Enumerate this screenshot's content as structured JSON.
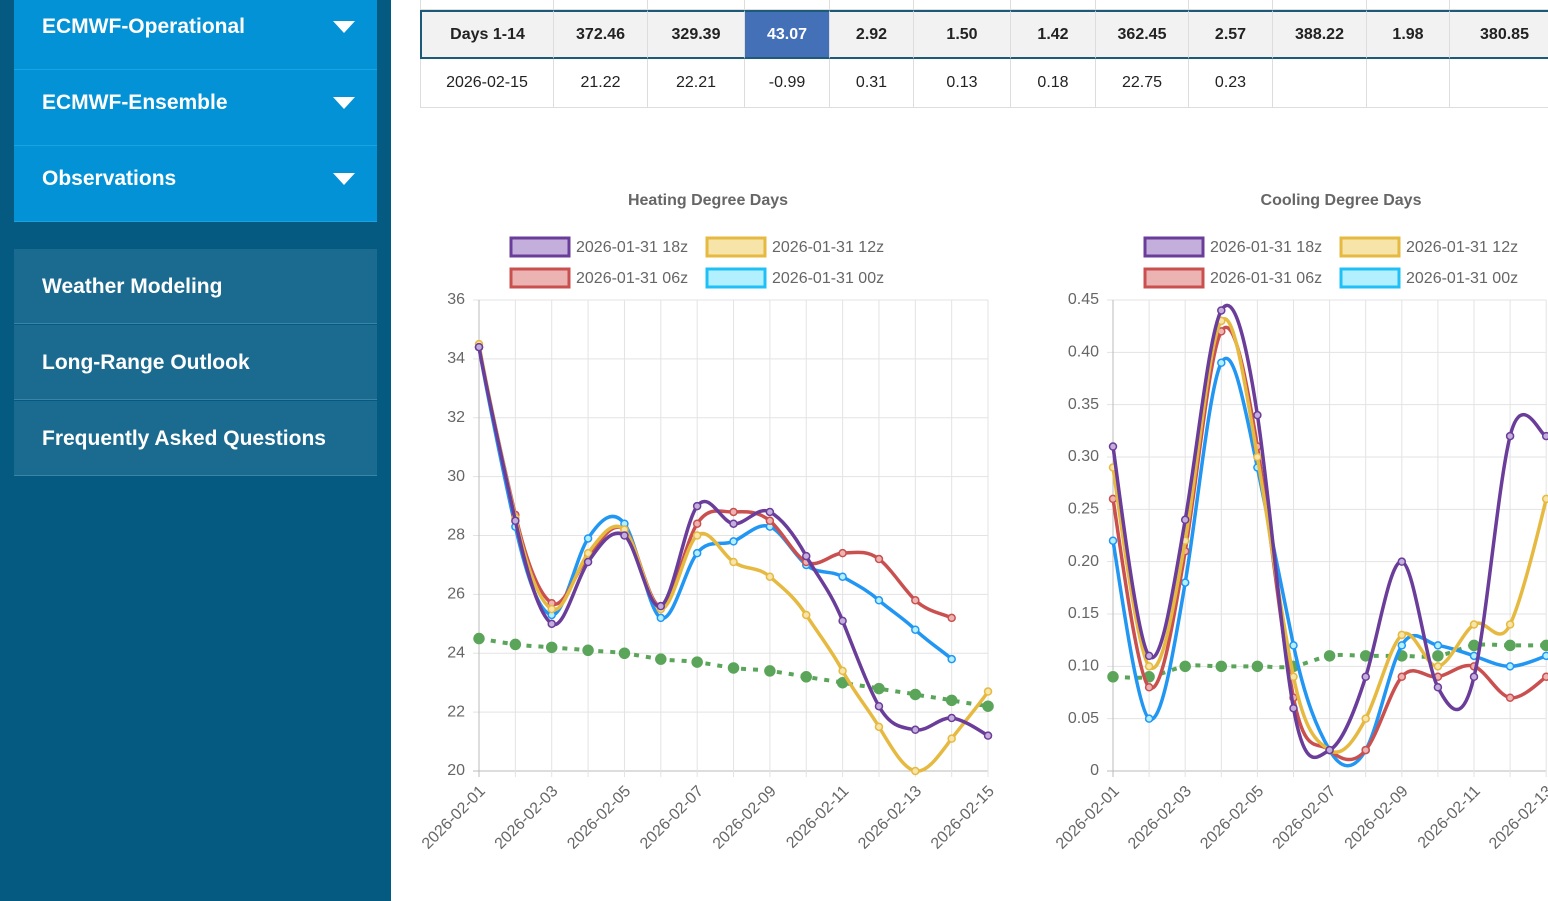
{
  "sidebar": {
    "dropdowns": [
      "ECMWF-Operational",
      "ECMWF-Ensemble",
      "Observations"
    ],
    "links": [
      "Weather Modeling",
      "Long-Range Outlook",
      "Frequently Asked Questions"
    ]
  },
  "table": {
    "rows": [
      [
        "Days 1-14",
        "372.46",
        "329.39",
        "43.07",
        "2.92",
        "1.50",
        "1.42",
        "362.45",
        "2.57",
        "388.22",
        "1.98",
        "380.85"
      ],
      [
        "2026-02-15",
        "21.22",
        "22.21",
        "-0.99",
        "0.31",
        "0.13",
        "0.18",
        "22.75",
        "0.23"
      ]
    ]
  },
  "chart_data": [
    {
      "type": "line",
      "title": "Heating Degree Days",
      "categories": [
        "2026-02-01",
        null,
        "2026-02-03",
        null,
        "2026-02-05",
        null,
        "2026-02-07",
        null,
        "2026-02-09",
        null,
        "2026-02-11",
        null,
        "2026-02-13",
        null,
        "2026-02-15"
      ],
      "series": [
        {
          "name": "2026-01-31 18z",
          "color": "#6a3d9a",
          "fill": "#c4aedb",
          "values": [
            34.4,
            28.5,
            25.0,
            27.1,
            28.0,
            25.6,
            29.0,
            28.4,
            28.8,
            27.3,
            25.1,
            22.2,
            21.4,
            21.8,
            21.2
          ]
        },
        {
          "name": "2026-01-31 12z",
          "color": "#e6b941",
          "fill": "#f6e4a9",
          "values": [
            34.5,
            28.6,
            25.5,
            27.4,
            28.2,
            25.5,
            28.0,
            27.1,
            26.6,
            25.3,
            23.4,
            21.5,
            20.0,
            21.1,
            22.7
          ]
        },
        {
          "name": "2026-01-31 06z",
          "color": "#c9504f",
          "fill": "#ebb4b3",
          "values": [
            34.4,
            28.7,
            25.7,
            27.3,
            28.2,
            25.6,
            28.4,
            28.8,
            28.5,
            27.1,
            27.4,
            27.2,
            25.8,
            25.2,
            null
          ]
        },
        {
          "name": "2026-01-31 00z",
          "color": "#2196f3",
          "fill": "#b3f0ff",
          "legend_color": "#1fc0f5",
          "values": [
            34.4,
            28.3,
            25.3,
            27.9,
            28.4,
            25.2,
            27.4,
            27.8,
            28.3,
            27.0,
            26.6,
            25.8,
            24.8,
            23.8,
            null
          ]
        },
        {
          "color": "#5aa55a",
          "style": "dotted",
          "values": [
            24.5,
            24.3,
            24.2,
            24.1,
            24.0,
            23.8,
            23.7,
            23.5,
            23.4,
            23.2,
            23.0,
            22.8,
            22.6,
            22.4,
            22.2
          ]
        }
      ],
      "ylim": [
        20,
        36
      ],
      "yticks": [
        20,
        22,
        24,
        26,
        28,
        30,
        32,
        34,
        36
      ],
      "grid": true
    },
    {
      "type": "line",
      "title": "Cooling Degree Days",
      "categories": [
        "2026-02-01",
        null,
        "2026-02-03",
        null,
        "2026-02-05",
        null,
        "2026-02-07",
        null,
        "2026-02-09",
        null,
        "2026-02-11",
        null,
        "2026-02-13"
      ],
      "series": [
        {
          "name": "2026-01-31 18z",
          "color": "#6a3d9a",
          "fill": "#c4aedb",
          "values": [
            0.31,
            0.11,
            0.24,
            0.44,
            0.34,
            0.06,
            0.02,
            0.09,
            0.2,
            0.08,
            0.09,
            0.32,
            0.32
          ]
        },
        {
          "name": "2026-01-31 12z",
          "color": "#e6b941",
          "fill": "#f6e4a9",
          "values": [
            0.29,
            0.1,
            0.22,
            0.43,
            0.3,
            0.09,
            0.02,
            0.05,
            0.13,
            0.1,
            0.14,
            0.14,
            0.26
          ]
        },
        {
          "name": "2026-01-31 06z",
          "color": "#c9504f",
          "fill": "#ebb4b3",
          "values": [
            0.26,
            0.08,
            0.21,
            0.42,
            0.31,
            0.07,
            0.02,
            0.02,
            0.09,
            0.09,
            0.1,
            0.07,
            0.09
          ]
        },
        {
          "name": "2026-01-31 00z",
          "color": "#2196f3",
          "fill": "#b3f0ff",
          "legend_color": "#1fc0f5",
          "values": [
            0.22,
            0.05,
            0.18,
            0.39,
            0.29,
            0.12,
            0.02,
            0.02,
            0.12,
            0.12,
            0.11,
            0.1,
            0.11
          ]
        },
        {
          "color": "#5aa55a",
          "style": "dotted",
          "values": [
            0.09,
            0.09,
            0.1,
            0.1,
            0.1,
            0.1,
            0.11,
            0.11,
            0.11,
            0.11,
            0.12,
            0.12,
            0.12
          ]
        }
      ],
      "ylim": [
        0,
        0.45
      ],
      "yticks": [
        0,
        0.05,
        {
          "value": 0.1,
          "label": "0.10"
        },
        0.15,
        {
          "value": 0.2,
          "label": "0.20"
        },
        0.25,
        {
          "value": 0.3,
          "label": "0.30"
        },
        0.35,
        {
          "value": 0.4,
          "label": "0.40"
        },
        0.45
      ],
      "grid": true
    }
  ]
}
